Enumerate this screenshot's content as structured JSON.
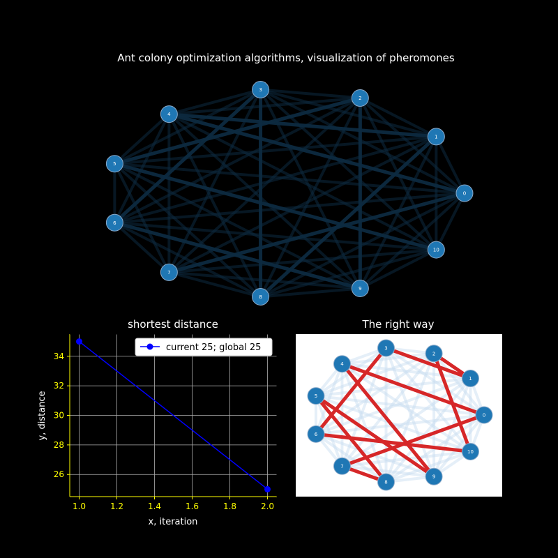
{
  "colors": {
    "background": "#000000",
    "node": "#1f77b4",
    "node_edge": "#8aa9c9",
    "pheromone_edge": "#0d2a40",
    "line": "#0000ff",
    "axis_spine": "#ffff00",
    "tick_label": "#ffff00",
    "route": "#d62728",
    "graph_bg": "#ffffff",
    "light_edge": "#c6dbef",
    "grid": "#b0b0b0"
  },
  "chart_data": [
    {
      "type": "network",
      "title": "Ant colony optimization algorithms, visualization of pheromones",
      "nodes": [
        "0",
        "1",
        "2",
        "3",
        "4",
        "5",
        "6",
        "7",
        "8",
        "9",
        "10"
      ],
      "edges": "complete graph between all nodes (pheromone intensity shown by edge opacity)"
    },
    {
      "type": "line",
      "title": "shortest distance",
      "xlabel": "x, iteration",
      "ylabel": "y, distance",
      "x": [
        1,
        2
      ],
      "series": [
        {
          "name": "current 25; global 25",
          "values": [
            35,
            25
          ]
        }
      ],
      "xlim": [
        0.95,
        2.05
      ],
      "ylim": [
        24.5,
        35.5
      ],
      "xticks": [
        "1.0",
        "1.2",
        "1.4",
        "1.6",
        "1.8",
        "2.0"
      ],
      "yticks": [
        "26",
        "28",
        "30",
        "32",
        "34"
      ],
      "grid": true,
      "legend": "top-right"
    },
    {
      "type": "network",
      "title": "The right way",
      "nodes": [
        "0",
        "1",
        "2",
        "3",
        "4",
        "5",
        "6",
        "7",
        "8",
        "9",
        "10"
      ],
      "route": [
        [
          2,
          1
        ],
        [
          1,
          3
        ],
        [
          3,
          6
        ],
        [
          6,
          10
        ],
        [
          10,
          2
        ],
        [
          4,
          9
        ],
        [
          9,
          5
        ],
        [
          5,
          8
        ],
        [
          8,
          7
        ],
        [
          7,
          0
        ],
        [
          0,
          4
        ]
      ]
    }
  ]
}
